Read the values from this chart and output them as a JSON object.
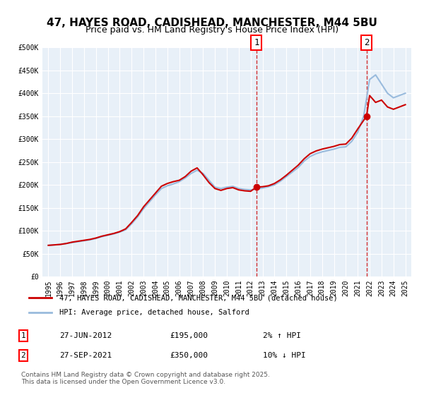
{
  "title_line1": "47, HAYES ROAD, CADISHEAD, MANCHESTER, M44 5BU",
  "title_line2": "Price paid vs. HM Land Registry's House Price Index (HPI)",
  "xlabel": "",
  "ylabel": "",
  "background_color": "#ffffff",
  "plot_bg_color": "#e8f0f8",
  "grid_color": "#ffffff",
  "legend_label_red": "47, HAYES ROAD, CADISHEAD, MANCHESTER, M44 5BU (detached house)",
  "legend_label_blue": "HPI: Average price, detached house, Salford",
  "red_color": "#cc0000",
  "blue_color": "#99bbdd",
  "marker1_date": 2012.49,
  "marker1_value": 195000,
  "marker1_label": "1",
  "marker2_date": 2021.74,
  "marker2_value": 350000,
  "marker2_label": "2",
  "footnote": "Contains HM Land Registry data © Crown copyright and database right 2025.\nThis data is licensed under the Open Government Licence v3.0.",
  "table_rows": [
    {
      "num": "1",
      "date": "27-JUN-2012",
      "price": "£195,000",
      "hpi": "2% ↑ HPI"
    },
    {
      "num": "2",
      "date": "27-SEP-2021",
      "price": "£350,000",
      "hpi": "10% ↓ HPI"
    }
  ],
  "ylim": [
    0,
    500000
  ],
  "yticks": [
    0,
    50000,
    100000,
    150000,
    200000,
    250000,
    300000,
    350000,
    400000,
    450000,
    500000
  ],
  "ytick_labels": [
    "£0",
    "£50K",
    "£100K",
    "£150K",
    "£200K",
    "£250K",
    "£300K",
    "£350K",
    "£400K",
    "£450K",
    "£500K"
  ],
  "xlim_start": 1994.5,
  "xlim_end": 2025.5,
  "xtick_years": [
    1995,
    1996,
    1997,
    1998,
    1999,
    2000,
    2001,
    2002,
    2003,
    2004,
    2005,
    2006,
    2007,
    2008,
    2009,
    2010,
    2011,
    2012,
    2013,
    2014,
    2015,
    2016,
    2017,
    2018,
    2019,
    2020,
    2021,
    2022,
    2023,
    2024,
    2025
  ]
}
